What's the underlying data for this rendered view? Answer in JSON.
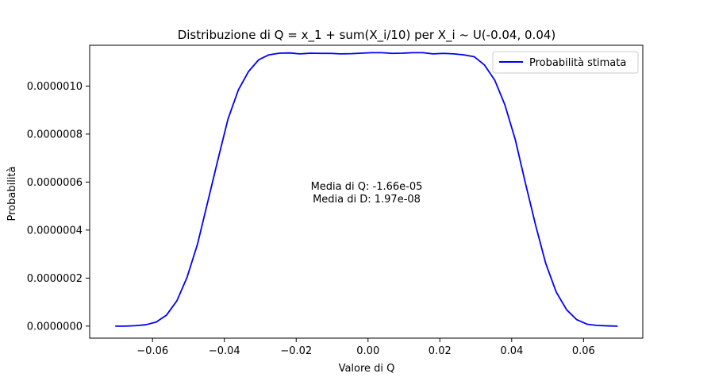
{
  "chart_data": {
    "type": "line",
    "title": "Distribuzione di Q = x_1 + sum(X_i/10) per X_i ~ U(-0.04, 0.04)",
    "xlabel": "Valore di Q",
    "ylabel": "Probabilità",
    "xlim": [
      -0.0775,
      0.0765
    ],
    "ylim": [
      -5e-08,
      1.17e-06
    ],
    "x_ticks": [
      -0.06,
      -0.04,
      -0.02,
      0.0,
      0.02,
      0.04,
      0.06
    ],
    "x_tick_labels": [
      "−0.06",
      "−0.04",
      "−0.02",
      "0.00",
      "0.02",
      "0.04",
      "0.06"
    ],
    "y_ticks": [
      0.0,
      2e-07,
      4e-07,
      6e-07,
      8e-07,
      1e-06
    ],
    "y_tick_labels": [
      "0.0000000",
      "0.0000002",
      "0.0000004",
      "0.0000006",
      "0.0000008",
      "0.0000010"
    ],
    "grid": false,
    "legend_position": "upper right",
    "annotation": [
      "Media di Q: -1.66e-05",
      "Media di D: 1.97e-08"
    ],
    "series": [
      {
        "name": "Probabilità stimata",
        "color": "#0000ff",
        "x": [
          -0.0704,
          -0.0675,
          -0.0646,
          -0.0618,
          -0.059,
          -0.0561,
          -0.0532,
          -0.0504,
          -0.0475,
          -0.0447,
          -0.0418,
          -0.039,
          -0.0361,
          -0.0333,
          -0.0304,
          -0.0276,
          -0.0247,
          -0.0218,
          -0.019,
          -0.0161,
          -0.0133,
          -0.0104,
          -0.0076,
          -0.0047,
          -0.0019,
          0.001,
          0.0039,
          0.0067,
          0.0096,
          0.0124,
          0.0153,
          0.0181,
          0.021,
          0.0239,
          0.0267,
          0.0296,
          0.0324,
          0.0353,
          0.0381,
          0.041,
          0.0438,
          0.0467,
          0.0495,
          0.0524,
          0.0553,
          0.0581,
          0.061,
          0.0638,
          0.0667,
          0.0695
        ],
        "values": [
          0.0,
          0.0,
          2e-09,
          6e-09,
          1.7e-08,
          4.6e-08,
          1.06e-07,
          2.03e-07,
          3.4e-07,
          5.13e-07,
          6.93e-07,
          8.62e-07,
          9.84e-07,
          1.06e-06,
          1.11e-06,
          1.13e-06,
          1.137e-06,
          1.138e-06,
          1.134e-06,
          1.137e-06,
          1.136e-06,
          1.136e-06,
          1.134e-06,
          1.135e-06,
          1.137e-06,
          1.139e-06,
          1.139e-06,
          1.136e-06,
          1.137e-06,
          1.139e-06,
          1.139e-06,
          1.134e-06,
          1.136e-06,
          1.134e-06,
          1.13e-06,
          1.122e-06,
          1.088e-06,
          1.024e-06,
          9.22e-07,
          7.77e-07,
          5.97e-07,
          4.18e-07,
          2.6e-07,
          1.42e-07,
          6.8e-08,
          2.7e-08,
          8e-09,
          3e-09,
          1e-09,
          0.0
        ]
      }
    ]
  }
}
